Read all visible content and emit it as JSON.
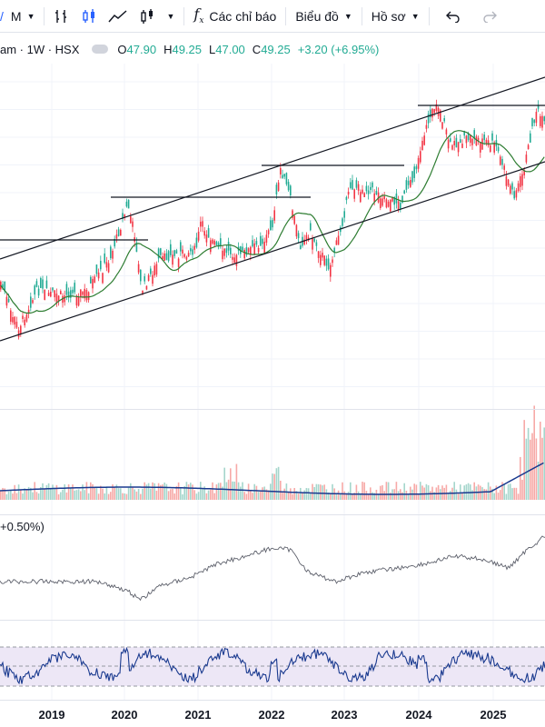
{
  "toolbar": {
    "interval": "M",
    "indicators_label": "Các chỉ báo",
    "chart_type_label": "Biểu đồ",
    "profile_label": "Hồ sơ"
  },
  "legend": {
    "symbol": "am · 1W · HSX",
    "open_key": "O",
    "open_val": "47.90",
    "high_key": "H",
    "high_val": "49.25",
    "low_key": "L",
    "low_val": "47.00",
    "close_key": "C",
    "close_val": "49.25",
    "change": "+3.20 (+6.95%)"
  },
  "indicator2_label": "+0.50%)",
  "xaxis": {
    "labels": [
      "2019",
      "2020",
      "2021",
      "2022",
      "2023",
      "2024",
      "2025"
    ]
  },
  "colors": {
    "up": "#22ab94",
    "down": "#f23645",
    "ma": "#2e7d32",
    "volume_ma": "#1a3a8f",
    "rsi_line": "#1a3a8f",
    "rsi_band": "#ede7f6",
    "trend": "#131722"
  },
  "chart_data": {
    "type": "candlestick",
    "x": [
      "2019",
      "2020",
      "2021",
      "2022",
      "2023",
      "2024",
      "2025"
    ],
    "last_bar": {
      "open": 47.9,
      "high": 49.25,
      "low": 47.0,
      "close": 49.25,
      "change": 3.2,
      "change_pct": 6.95
    },
    "interval": "1W",
    "exchange": "HSX",
    "panes": [
      "price",
      "volume",
      "comparison",
      "rsi"
    ]
  }
}
